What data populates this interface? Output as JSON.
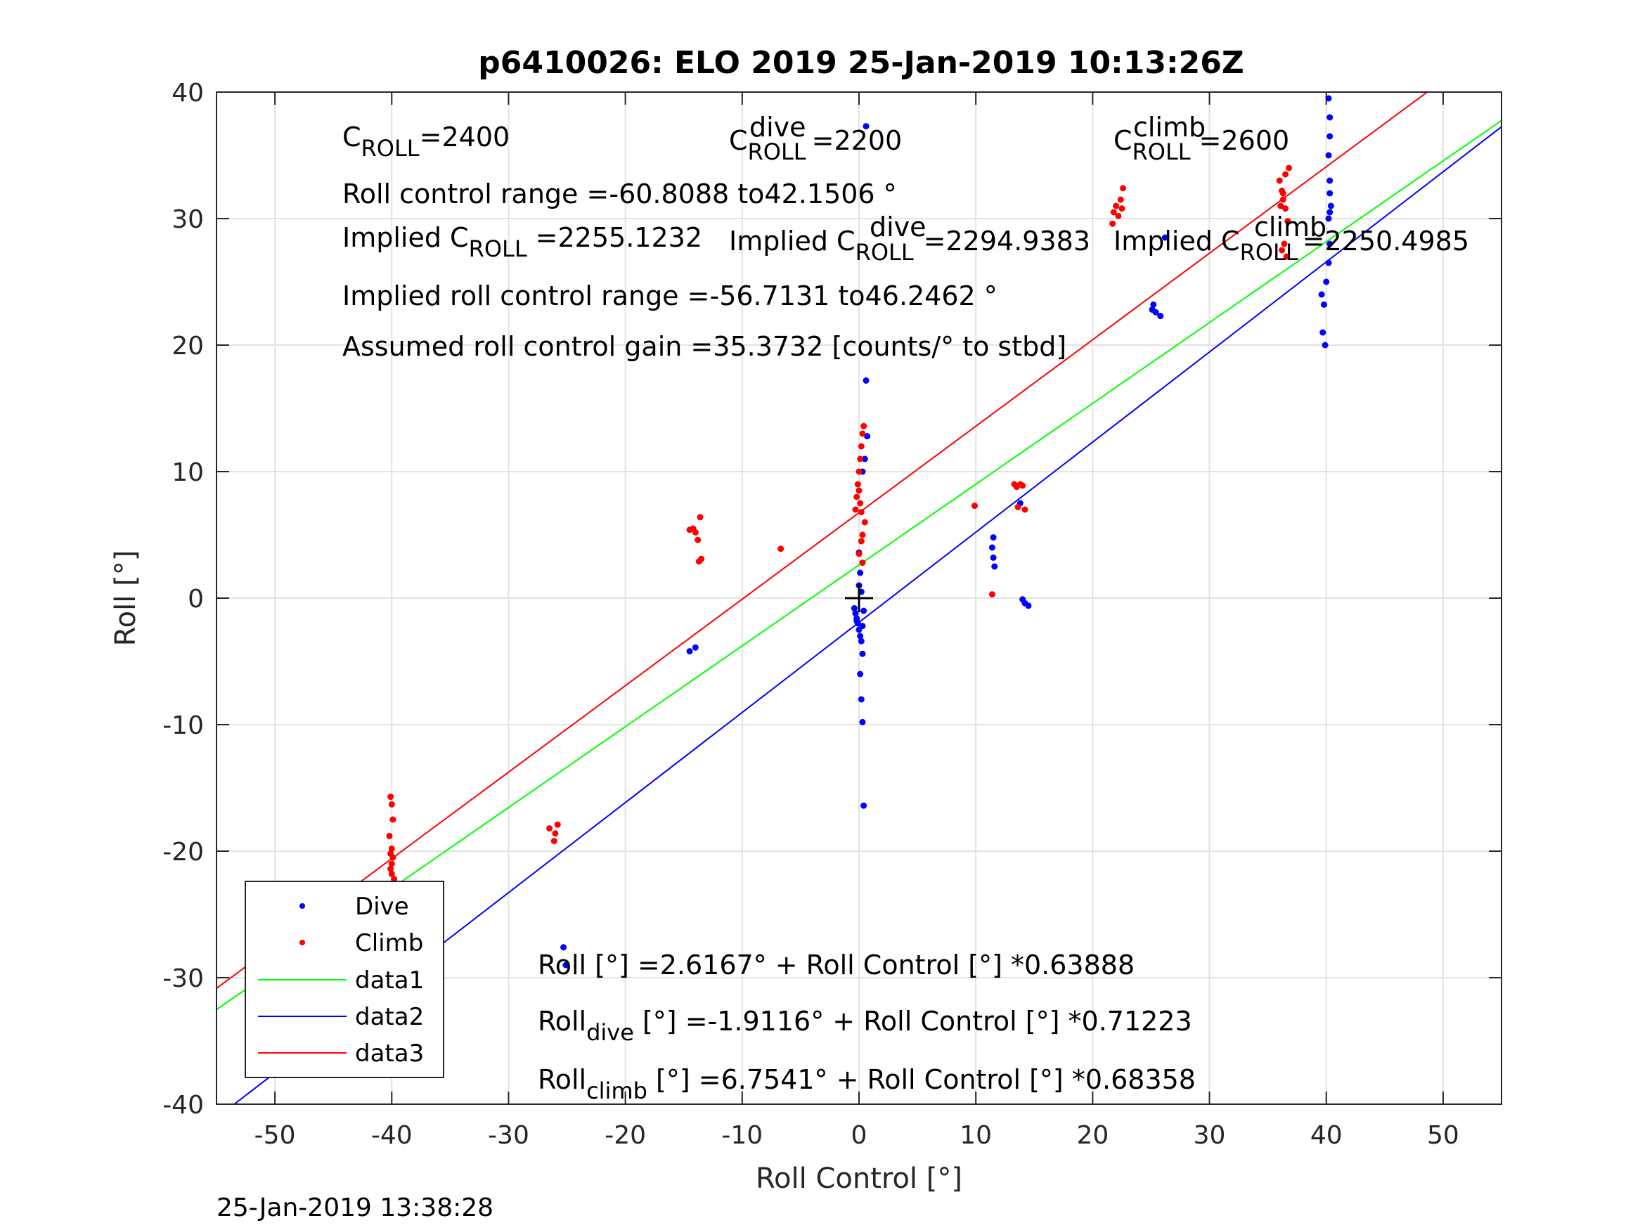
{
  "chart_data": {
    "type": "scatter",
    "title": "p6410026: ELO 2019 25-Jan-2019 10:13:26Z",
    "xlabel": "Roll Control [°]",
    "ylabel": "Roll [°]",
    "xlim": [
      -55,
      55
    ],
    "ylim": [
      -40,
      40
    ],
    "xticks": [
      -50,
      -40,
      -30,
      -20,
      -10,
      0,
      10,
      20,
      30,
      40,
      50
    ],
    "yticks": [
      -40,
      -30,
      -20,
      -10,
      0,
      10,
      20,
      30,
      40
    ],
    "xtick_labels": [
      "-50",
      "-40",
      "-30",
      "-20",
      "-10",
      "0",
      "10",
      "20",
      "30",
      "40",
      "50"
    ],
    "ytick_labels": [
      "-40",
      "-30",
      "-20",
      "-10",
      "0",
      "10",
      "20",
      "30",
      "40"
    ],
    "grid": true,
    "legend_placement": "bottom-left",
    "series": [
      {
        "name": "Dive",
        "kind": "points",
        "color": "#0000ff",
        "x": [
          -40.1,
          -40.0,
          -39.9,
          -40.2,
          -40.0,
          -39.8,
          -40.1,
          -40.0,
          -40.1,
          -25.3,
          -25.1,
          -14.5,
          -14.0,
          -0.4,
          -0.3,
          -0.2,
          -0.1,
          0.0,
          0.1,
          0.2,
          0.3,
          0.4,
          -0.2,
          0.0,
          0.2,
          0.3,
          0.1,
          0.2,
          0.3,
          0.4,
          0.6,
          0.6,
          0.7,
          0.3,
          0.5,
          0.0,
          0.1,
          11.5,
          11.4,
          11.5,
          11.6,
          14.0,
          14.2,
          14.5,
          13.8,
          25.2,
          25.4,
          25.8,
          25.1,
          26.2,
          39.6,
          39.8,
          39.7,
          39.9,
          40.0,
          40.2,
          40.3,
          40.2,
          40.4,
          40.3,
          40.2,
          40.3,
          40.3,
          40.2,
          40.3,
          40.3
        ],
        "y": [
          -24.5,
          -28.0,
          -29.0,
          -29.5,
          -30.0,
          -30.5,
          -31.0,
          -26.0,
          -27.0,
          -27.6,
          -29.0,
          -4.2,
          -3.9,
          -0.8,
          -1.2,
          -1.6,
          -2.0,
          -2.5,
          -3.0,
          -3.4,
          -2.2,
          -1.0,
          -1.8,
          1.0,
          0.5,
          -4.4,
          -6.0,
          -8.0,
          -9.8,
          -16.4,
          17.2,
          37.3,
          12.8,
          10.0,
          11.0,
          3.6,
          2.0,
          4.8,
          4.0,
          3.2,
          2.5,
          -0.1,
          -0.4,
          -0.6,
          7.5,
          23.2,
          22.6,
          22.3,
          22.8,
          28.5,
          24.0,
          23.2,
          21.0,
          20.0,
          25.0,
          26.5,
          28.0,
          30.0,
          31.0,
          33.0,
          35.0,
          36.5,
          38.0,
          39.5,
          30.5,
          32.0
        ]
      },
      {
        "name": "Climb",
        "kind": "points",
        "color": "#ff0000",
        "x": [
          -40.1,
          -40.0,
          -39.9,
          -40.2,
          -40.0,
          -40.1,
          -39.9,
          -40.0,
          -40.1,
          -40.0,
          -39.8,
          -40.2,
          -26.5,
          -26.0,
          -26.1,
          -25.8,
          -14.5,
          -14.0,
          -13.6,
          -13.8,
          -13.5,
          -13.7,
          -14.2,
          -6.7,
          -0.3,
          -0.2,
          -0.1,
          0.0,
          0.1,
          0.2,
          0.3,
          0.4,
          0.5,
          0.3,
          0.2,
          0.0,
          0.1,
          0.2,
          0.0,
          0.3,
          9.9,
          11.4,
          13.3,
          13.5,
          13.8,
          14.0,
          14.2,
          13.6,
          21.7,
          21.8,
          22.0,
          22.2,
          22.4,
          22.5,
          22.6,
          36.0,
          36.2,
          36.3,
          36.5,
          36.7,
          36.4,
          36.2,
          36.6,
          36.8,
          36.1,
          36.3,
          36.5
        ],
        "y": [
          -15.7,
          -16.3,
          -17.5,
          -18.8,
          -19.8,
          -20.2,
          -20.5,
          -21.0,
          -21.4,
          -21.8,
          -22.2,
          -22.6,
          -18.2,
          -18.6,
          -19.2,
          -17.9,
          5.4,
          5.2,
          6.4,
          4.6,
          3.1,
          2.9,
          5.5,
          3.9,
          7.0,
          8.0,
          9.0,
          10.0,
          11.0,
          12.0,
          13.0,
          13.6,
          6.0,
          5.0,
          4.5,
          3.5,
          7.5,
          6.8,
          8.5,
          2.8,
          7.3,
          0.3,
          9.0,
          8.8,
          9.0,
          8.9,
          7.0,
          7.2,
          29.6,
          30.5,
          31.0,
          30.2,
          31.5,
          30.8,
          32.4,
          33.0,
          32.2,
          31.5,
          30.8,
          29.8,
          28.0,
          27.5,
          27.0,
          34.0,
          31.0,
          32.0,
          33.5
        ]
      },
      {
        "name": "data1",
        "kind": "line",
        "color": "#00ff00",
        "intercept": 2.6167,
        "slope": 0.63888
      },
      {
        "name": "data2",
        "kind": "line",
        "color": "#0000ff",
        "intercept": -1.9116,
        "slope": 0.71223
      },
      {
        "name": "data3",
        "kind": "line",
        "color": "#ff0000",
        "intercept": 6.7541,
        "slope": 0.68358
      }
    ],
    "marker_point": {
      "x": 0,
      "y": 0,
      "color": "#000000"
    }
  },
  "annotations": {
    "croll": {
      "base": "C",
      "sub": "ROLL",
      "value": "=2400"
    },
    "croll_dive": {
      "base": "C",
      "sup": "dive",
      "sub": "ROLL",
      "value": "=2200"
    },
    "croll_climb": {
      "base": "C",
      "sup": "climb",
      "sub": "ROLL",
      "value": "=2600"
    },
    "roll_control_range": "Roll control range =-60.8088 to42.1506 °",
    "implied_croll": {
      "prefix": "Implied C",
      "sub": "ROLL",
      "value": "=2255.1232"
    },
    "implied_croll_dive": {
      "prefix": "Implied C",
      "sup": "dive",
      "sub": "ROLL",
      "value": "=2294.9383"
    },
    "implied_croll_climb": {
      "prefix": "Implied C",
      "sup": "climb",
      "sub": "ROLL",
      "value": "=2250.4985"
    },
    "implied_range": "Implied roll control range =-56.7131 to46.2462 °",
    "assumed_gain": "Assumed roll control gain =35.3732 [counts/° to stbd]",
    "fit_all": "Roll [°] =2.6167° + Roll Control [°] *0.63888",
    "fit_dive": {
      "base": "Roll",
      "sub": "dive",
      "rest": " [°] =-1.9116° + Roll Control [°] *0.71223"
    },
    "fit_climb": {
      "base": "Roll",
      "sub": "climb",
      "rest": " [°] =6.7541° + Roll Control [°] *0.68358"
    }
  },
  "footer_timestamp": "25-Jan-2019 13:38:28"
}
